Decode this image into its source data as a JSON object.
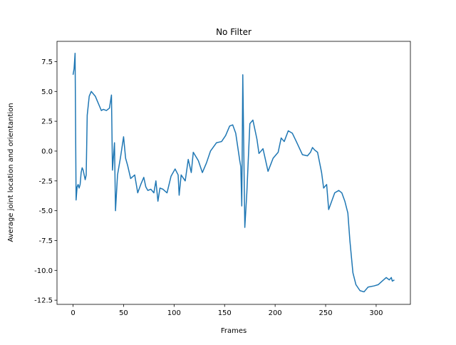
{
  "chart_data": {
    "type": "line",
    "title": "No Filter",
    "xlabel": "Frames",
    "ylabel": "Average joint location and orientantion",
    "x": [
      0,
      1,
      2,
      3,
      4,
      5,
      6,
      7,
      8,
      9,
      10,
      11,
      12,
      13,
      14,
      16,
      18,
      20,
      22,
      24,
      26,
      28,
      30,
      33,
      36,
      38,
      39,
      41,
      42,
      44,
      47,
      50,
      52,
      54,
      57,
      61,
      64,
      67,
      70,
      72,
      74,
      77,
      80,
      82,
      84,
      86,
      89,
      93,
      97,
      101,
      104,
      105,
      107,
      111,
      114,
      117,
      119,
      124,
      128,
      132,
      136,
      142,
      147,
      151,
      155,
      158,
      161,
      165,
      166,
      167,
      168,
      170,
      172,
      175,
      178,
      182,
      184,
      188,
      193,
      198,
      203,
      206,
      209,
      213,
      217,
      221,
      227,
      232,
      235,
      237,
      239,
      242,
      246,
      248,
      251,
      253,
      256,
      259,
      263,
      266,
      269,
      272,
      274,
      277,
      280,
      284,
      288,
      292,
      298,
      302,
      306,
      310,
      313,
      315,
      316,
      318
    ],
    "series": [
      {
        "color": "#1f77b4",
        "values": [
          6.4,
          6.9,
          8.2,
          -4.1,
          -3.0,
          -2.8,
          -3.1,
          -2.8,
          -1.8,
          -1.4,
          -1.6,
          -2.0,
          -2.4,
          -2.0,
          3.0,
          4.6,
          5.0,
          4.8,
          4.6,
          4.2,
          3.8,
          3.4,
          3.5,
          3.4,
          3.6,
          4.7,
          -1.6,
          0.7,
          -5.0,
          -2.0,
          -0.5,
          1.2,
          -0.6,
          -1.2,
          -2.3,
          -2.0,
          -3.5,
          -2.8,
          -2.2,
          -3.0,
          -3.3,
          -3.2,
          -3.5,
          -2.5,
          -4.2,
          -3.1,
          -3.2,
          -3.5,
          -2.1,
          -1.5,
          -2.0,
          -3.7,
          -2.0,
          -2.5,
          -0.7,
          -1.8,
          -0.1,
          -0.8,
          -1.8,
          -1.0,
          0.0,
          0.7,
          0.8,
          1.3,
          2.1,
          2.2,
          1.5,
          -0.8,
          -1.3,
          -4.6,
          6.4,
          -6.4,
          -3.5,
          2.3,
          2.6,
          1.0,
          -0.2,
          0.2,
          -1.7,
          -0.6,
          -0.1,
          1.1,
          0.8,
          1.7,
          1.5,
          0.8,
          -0.3,
          -0.4,
          -0.1,
          0.3,
          0.1,
          -0.1,
          -1.8,
          -3.1,
          -2.8,
          -4.9,
          -4.2,
          -3.5,
          -3.3,
          -3.5,
          -4.2,
          -5.2,
          -7.5,
          -10.2,
          -11.2,
          -11.7,
          -11.8,
          -11.4,
          -11.3,
          -11.2,
          -10.9,
          -10.6,
          -10.8,
          -10.6,
          -10.9,
          -10.8
        ]
      }
    ],
    "xlim": [
      -15.9,
      333.9
    ],
    "ylim": [
      -12.85,
      9.2
    ],
    "xticks": [
      0,
      50,
      100,
      150,
      200,
      250,
      300
    ],
    "yticks": [
      -12.5,
      -10.0,
      -7.5,
      -5.0,
      -2.5,
      0.0,
      2.5,
      5.0,
      7.5
    ]
  }
}
